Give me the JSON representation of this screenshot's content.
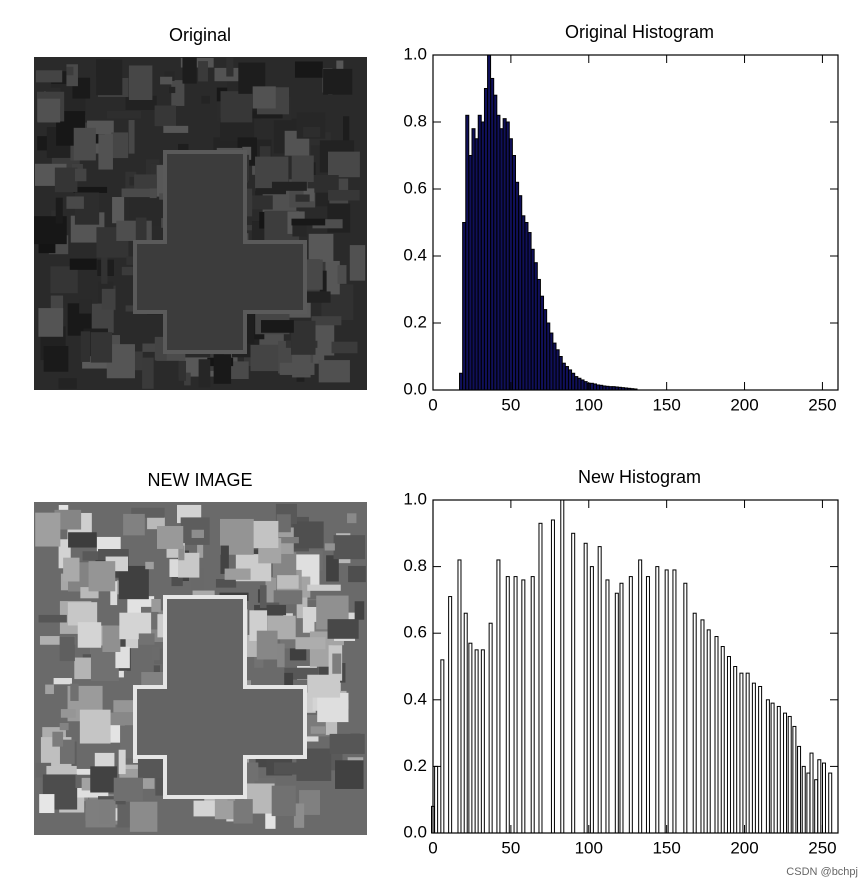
{
  "images": [
    {
      "title": "Original"
    },
    {
      "title": "NEW IMAGE"
    }
  ],
  "watermark": "CSDN @bchpj",
  "chart_data": [
    {
      "type": "bar",
      "title": "Original Histogram",
      "color": "#000000",
      "bar_fill": "#10105a",
      "xlim": [
        0,
        260
      ],
      "ylim": [
        0,
        1
      ],
      "xticks": [
        0,
        50,
        100,
        150,
        200,
        250
      ],
      "yticks": [
        {
          "value": 0,
          "label": "0.0"
        },
        0.2,
        0.4,
        0.6,
        0.8,
        {
          "value": 1,
          "label": "1.0"
        }
      ],
      "x": [
        18,
        20,
        22,
        24,
        26,
        28,
        30,
        32,
        34,
        36,
        38,
        40,
        42,
        44,
        46,
        48,
        50,
        52,
        54,
        56,
        58,
        60,
        62,
        64,
        66,
        68,
        70,
        72,
        74,
        76,
        78,
        80,
        82,
        84,
        86,
        88,
        90,
        92,
        94,
        96,
        98,
        100,
        102,
        104,
        106,
        108,
        110,
        112,
        114,
        116,
        118,
        120,
        122,
        124,
        126,
        128,
        130
      ],
      "values": [
        0.05,
        0.5,
        0.82,
        0.7,
        0.78,
        0.75,
        0.82,
        0.8,
        0.9,
        1.0,
        0.93,
        0.88,
        0.82,
        0.78,
        0.81,
        0.8,
        0.75,
        0.7,
        0.62,
        0.58,
        0.52,
        0.5,
        0.47,
        0.42,
        0.38,
        0.33,
        0.28,
        0.24,
        0.2,
        0.17,
        0.14,
        0.12,
        0.1,
        0.08,
        0.07,
        0.06,
        0.05,
        0.04,
        0.035,
        0.03,
        0.025,
        0.02,
        0.02,
        0.018,
        0.015,
        0.014,
        0.012,
        0.011,
        0.01,
        0.01,
        0.009,
        0.008,
        0.007,
        0.006,
        0.005,
        0.004,
        0.003
      ]
    },
    {
      "type": "bar",
      "title": "New Histogram",
      "color": "#000000",
      "bar_fill": "#ffffff",
      "xlim": [
        0,
        260
      ],
      "ylim": [
        0,
        1
      ],
      "xticks": [
        0,
        50,
        100,
        150,
        200,
        250
      ],
      "yticks": [
        {
          "value": 0,
          "label": "0.0"
        },
        0.2,
        0.4,
        0.6,
        0.8,
        {
          "value": 1,
          "label": "1.0"
        }
      ],
      "x": [
        0,
        2,
        6,
        11,
        17,
        21,
        24,
        28,
        32,
        37,
        42,
        48,
        53,
        58,
        64,
        69,
        77,
        83,
        90,
        98,
        102,
        107,
        112,
        118,
        121,
        127,
        133,
        138,
        144,
        150,
        155,
        162,
        168,
        173,
        177,
        182,
        186,
        190,
        194,
        198,
        202,
        206,
        210,
        215,
        218,
        222,
        226,
        229,
        232,
        235,
        238,
        241,
        243,
        246,
        248,
        251,
        255
      ],
      "values": [
        0.08,
        0.2,
        0.52,
        0.71,
        0.82,
        0.66,
        0.57,
        0.55,
        0.55,
        0.63,
        0.82,
        0.77,
        0.77,
        0.76,
        0.77,
        0.93,
        0.94,
        1.0,
        0.9,
        0.87,
        0.8,
        0.86,
        0.76,
        0.72,
        0.75,
        0.77,
        0.82,
        0.77,
        0.8,
        0.79,
        0.79,
        0.75,
        0.66,
        0.64,
        0.61,
        0.59,
        0.56,
        0.53,
        0.5,
        0.48,
        0.48,
        0.45,
        0.44,
        0.4,
        0.39,
        0.38,
        0.36,
        0.35,
        0.32,
        0.26,
        0.2,
        0.18,
        0.24,
        0.16,
        0.22,
        0.21,
        0.18
      ]
    }
  ]
}
